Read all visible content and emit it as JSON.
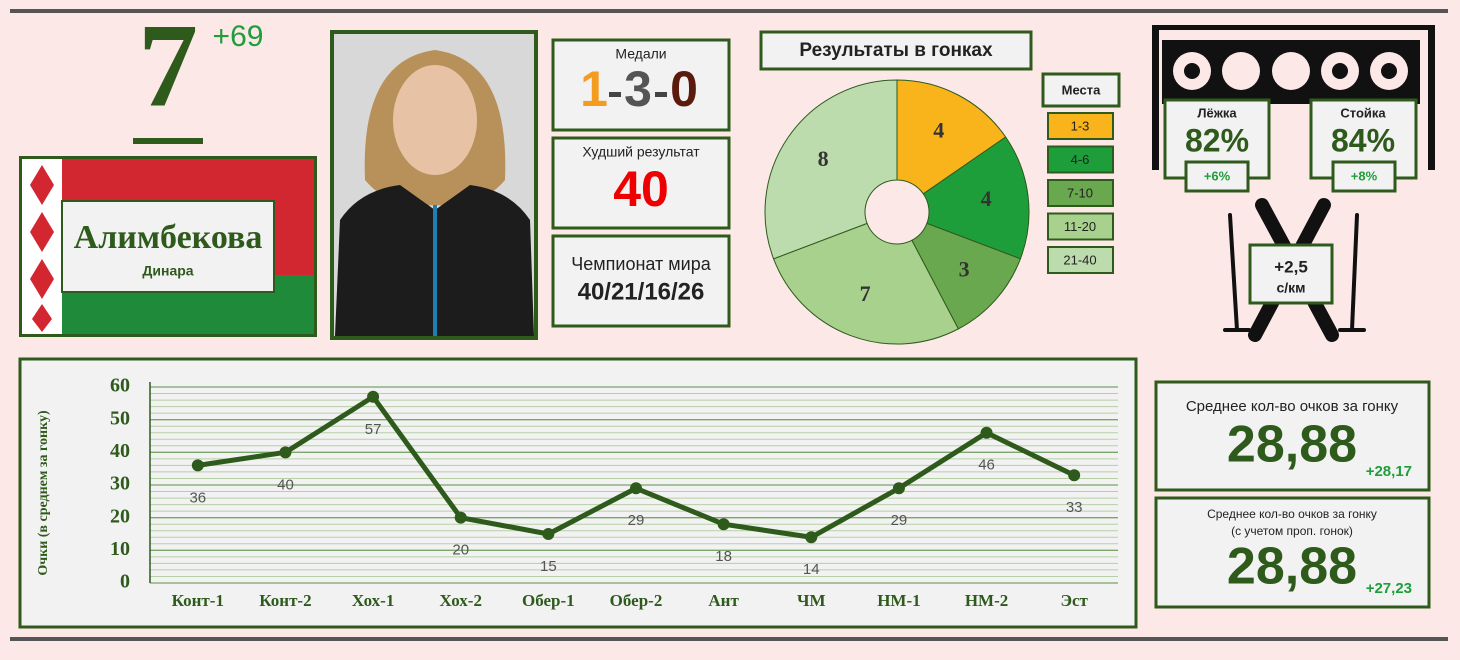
{
  "rank": {
    "place": 7,
    "change": "+69"
  },
  "athlete": {
    "last_name": "Алимбекова",
    "first_name": "Динара"
  },
  "medals": {
    "label": "Медали",
    "gold": 1,
    "silver": 3,
    "bronze": 0
  },
  "worst_result": {
    "label": "Худший результат",
    "value": 40
  },
  "world_championship": {
    "label": "Чемпионат мира",
    "value": "40/21/16/26"
  },
  "shooting": {
    "prone": {
      "label": "Лёжка",
      "accuracy": "82%",
      "change": "+6%"
    },
    "standing": {
      "label": "Стойка",
      "accuracy": "84%",
      "change": "+8%"
    }
  },
  "ski_speed": {
    "value": "+2,5",
    "unit": "с/км"
  },
  "average_points": [
    {
      "label_lines": [
        "Среднее кол-во очков за гонку"
      ],
      "value": "28,88",
      "change": "+28,17"
    },
    {
      "label_lines": [
        "Среднее кол-во очков за гонку",
        "(с учетом проп. гонок)"
      ],
      "value": "28,88",
      "change": "+27,23"
    }
  ],
  "chart_data": [
    {
      "type": "pie",
      "title": "Результаты в гонках",
      "legend_title": "Места",
      "categories": [
        "1-3",
        "4-6",
        "7-10",
        "11-20",
        "21-40"
      ],
      "values": [
        4,
        4,
        3,
        7,
        8
      ],
      "colors": [
        "#f8b41a",
        "#1e9e3a",
        "#6aa84f",
        "#a9d18e",
        "#bcdcae"
      ]
    },
    {
      "type": "line",
      "y_label": "Очки (в среднем за гонку)",
      "categories": [
        "Конт-1",
        "Конт-2",
        "Хох-1",
        "Хох-2",
        "Обер-1",
        "Обер-2",
        "Ант",
        "ЧМ",
        "НМ-1",
        "НМ-2",
        "Эст"
      ],
      "series": [
        {
          "values": [
            36,
            40,
            57,
            20,
            15,
            29,
            18,
            14,
            29,
            46,
            33
          ],
          "color": "#2e5a1c"
        }
      ],
      "ylim": [
        0,
        60
      ],
      "yticks": [
        0,
        10,
        20,
        30,
        40,
        50,
        60
      ],
      "grid": true
    }
  ]
}
